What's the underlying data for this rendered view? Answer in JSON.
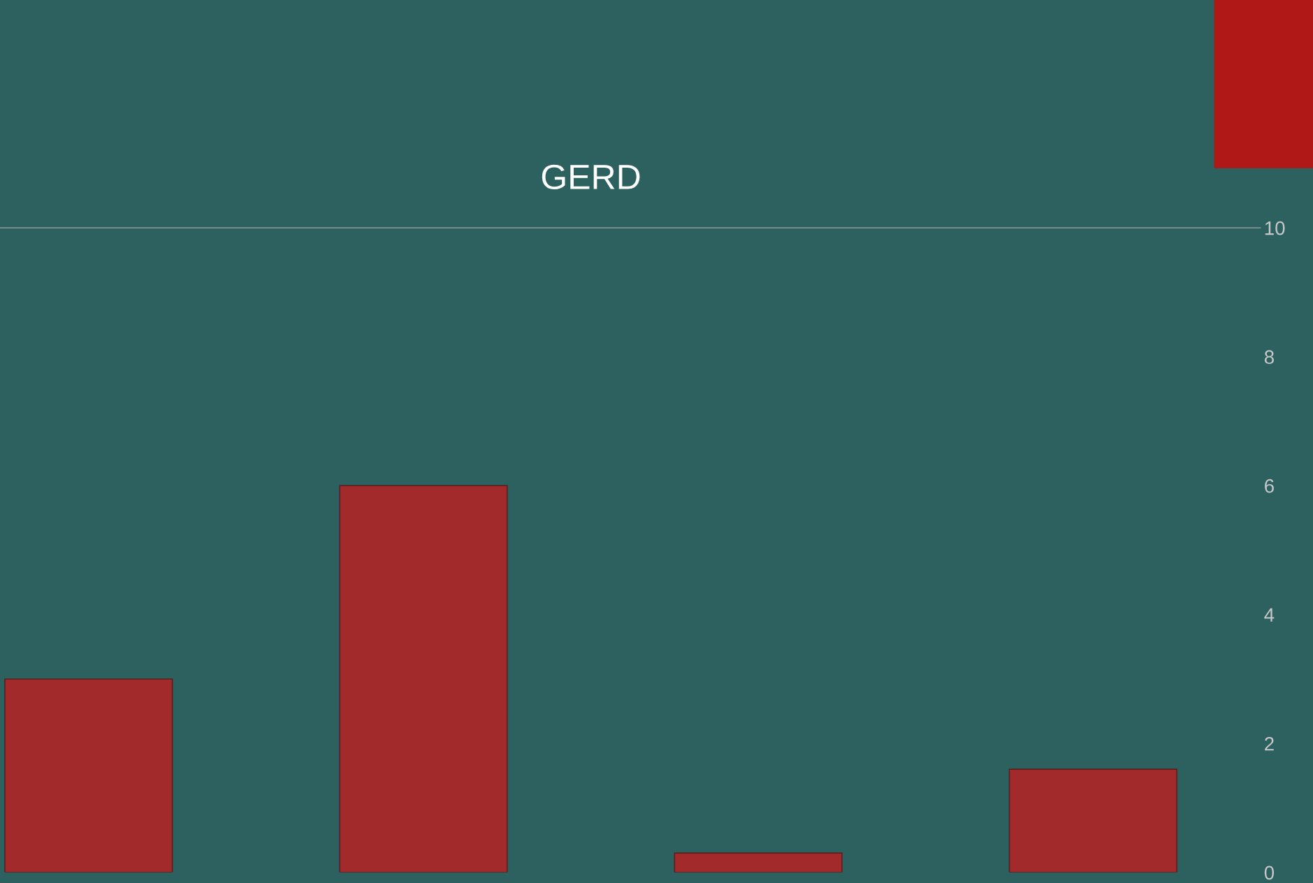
{
  "chart_data": {
    "type": "bar",
    "title": "GERD",
    "categories": [
      null,
      null,
      null,
      null
    ],
    "values": [
      3,
      6,
      0.3,
      1.6
    ],
    "color": "#a32a2a",
    "ylim": [
      0,
      10
    ],
    "yticks": [
      0,
      2,
      4,
      6,
      8,
      10
    ],
    "grid": false
  }
}
